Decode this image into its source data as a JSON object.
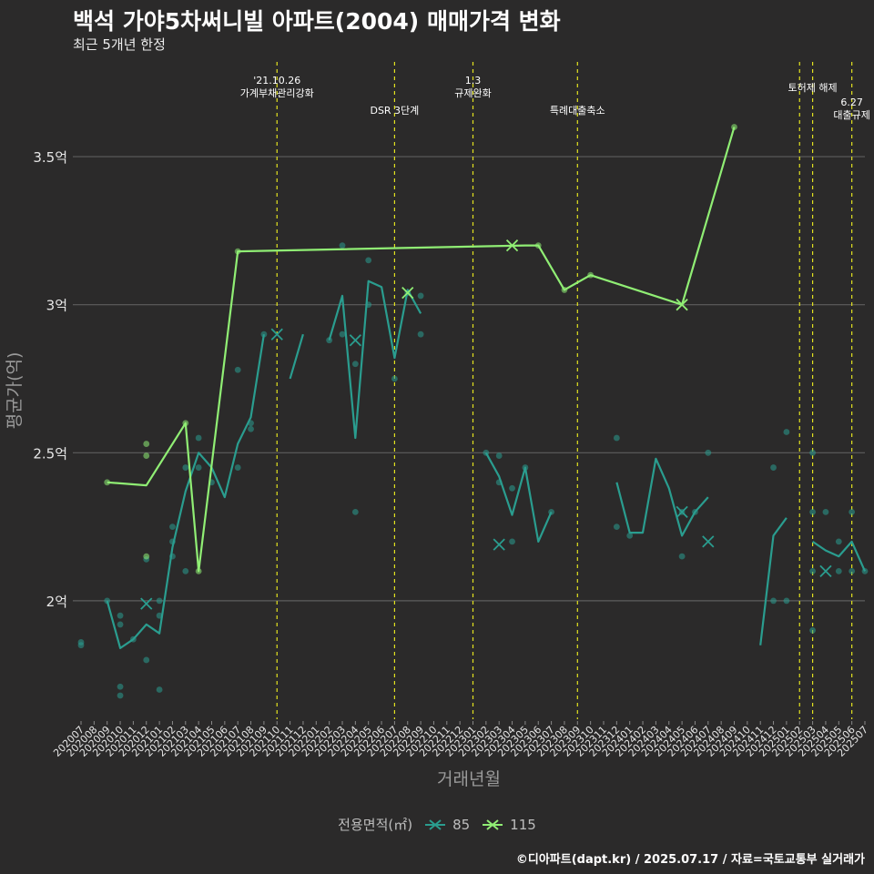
{
  "title": "백석 가야5차써니빌 아파트(2004) 매매가격 변화",
  "subtitle": "최근 5개년 한정",
  "caption": "©디아파트(dapt.kr) / 2025.07.17 / 자료=국토교통부 실거래가",
  "legend_title": "전용면적(㎡)",
  "chart_data": {
    "type": "line",
    "xlabel": "거래년월",
    "ylabel": "평균가(억)",
    "ylim": [
      1.6,
      3.82
    ],
    "yticks": [
      {
        "v": 2,
        "label": "2억"
      },
      {
        "v": 2.5,
        "label": "2.5억"
      },
      {
        "v": 3,
        "label": "3억"
      },
      {
        "v": 3.5,
        "label": "3.5억"
      }
    ],
    "categories": [
      "202007",
      "202008",
      "202009",
      "202010",
      "202011",
      "202012",
      "202101",
      "202102",
      "202103",
      "202104",
      "202105",
      "202106",
      "202107",
      "202108",
      "202109",
      "202110",
      "202111",
      "202112",
      "202201",
      "202202",
      "202203",
      "202204",
      "202205",
      "202206",
      "202207",
      "202208",
      "202209",
      "202210",
      "202211",
      "202212",
      "202301",
      "202302",
      "202303",
      "202304",
      "202305",
      "202306",
      "202307",
      "202308",
      "202309",
      "202310",
      "202311",
      "202312",
      "202401",
      "202402",
      "202403",
      "202404",
      "202405",
      "202406",
      "202407",
      "202408",
      "202409",
      "202410",
      "202411",
      "202412",
      "202501",
      "202502",
      "202503",
      "202504",
      "202505",
      "202506",
      "202507"
    ],
    "grid": true,
    "legend_position": "bottom",
    "series": [
      {
        "name": "85",
        "color": "#2a9d8f",
        "line": [
          [
            [
              2,
              2.0
            ],
            [
              3,
              1.84
            ],
            [
              4,
              1.87
            ],
            [
              5,
              1.92
            ],
            [
              6,
              1.89
            ],
            [
              7,
              2.18
            ],
            [
              8,
              2.37
            ],
            [
              9,
              2.5
            ],
            [
              10,
              2.45
            ],
            [
              11,
              2.35
            ],
            [
              12,
              2.53
            ],
            [
              13,
              2.62
            ],
            [
              14,
              2.9
            ]
          ],
          [
            [
              16,
              2.75
            ],
            [
              17,
              2.9
            ]
          ],
          [
            [
              19,
              2.88
            ],
            [
              20,
              3.03
            ],
            [
              21,
              2.55
            ],
            [
              22,
              3.08
            ],
            [
              23,
              3.06
            ],
            [
              24,
              2.82
            ],
            [
              25,
              3.05
            ],
            [
              26,
              2.97
            ]
          ],
          [
            [
              31,
              2.5
            ],
            [
              32,
              2.42
            ],
            [
              33,
              2.29
            ],
            [
              34,
              2.45
            ],
            [
              35,
              2.2
            ],
            [
              36,
              2.3
            ]
          ],
          [
            [
              41,
              2.4
            ],
            [
              42,
              2.23
            ],
            [
              43,
              2.23
            ],
            [
              44,
              2.48
            ],
            [
              45,
              2.38
            ],
            [
              46,
              2.22
            ],
            [
              47,
              2.3
            ],
            [
              48,
              2.35
            ]
          ],
          [
            [
              52,
              1.85
            ],
            [
              53,
              2.22
            ],
            [
              54,
              2.28
            ]
          ],
          [
            [
              56,
              2.2
            ],
            [
              57,
              2.17
            ],
            [
              58,
              2.15
            ],
            [
              59,
              2.2
            ],
            [
              60,
              2.1
            ]
          ]
        ],
        "points": [
          [
            0,
            1.86
          ],
          [
            0,
            1.85
          ],
          [
            2,
            2.0
          ],
          [
            3,
            1.95
          ],
          [
            3,
            1.92
          ],
          [
            3,
            1.71
          ],
          [
            3,
            1.68
          ],
          [
            4,
            1.87
          ],
          [
            5,
            2.14
          ],
          [
            5,
            1.8
          ],
          [
            6,
            2.0
          ],
          [
            6,
            1.95
          ],
          [
            6,
            1.7
          ],
          [
            7,
            2.2
          ],
          [
            7,
            2.15
          ],
          [
            7,
            2.25
          ],
          [
            8,
            2.45
          ],
          [
            8,
            2.1
          ],
          [
            9,
            2.55
          ],
          [
            9,
            2.45
          ],
          [
            10,
            2.4
          ],
          [
            12,
            2.78
          ],
          [
            12,
            2.45
          ],
          [
            13,
            2.6
          ],
          [
            13,
            2.58
          ],
          [
            14,
            2.9
          ],
          [
            19,
            2.88
          ],
          [
            20,
            3.2
          ],
          [
            20,
            2.9
          ],
          [
            21,
            2.3
          ],
          [
            21,
            2.8
          ],
          [
            22,
            3.15
          ],
          [
            22,
            3.0
          ],
          [
            24,
            2.75
          ],
          [
            25,
            3.04
          ],
          [
            26,
            3.03
          ],
          [
            26,
            2.9
          ],
          [
            31,
            2.5
          ],
          [
            32,
            2.49
          ],
          [
            32,
            2.4
          ],
          [
            33,
            2.38
          ],
          [
            33,
            2.2
          ],
          [
            34,
            2.45
          ],
          [
            36,
            2.3
          ],
          [
            41,
            2.55
          ],
          [
            41,
            2.25
          ],
          [
            42,
            2.22
          ],
          [
            46,
            2.15
          ],
          [
            46,
            2.3
          ],
          [
            47,
            2.3
          ],
          [
            48,
            2.5
          ],
          [
            53,
            2.45
          ],
          [
            53,
            2.0
          ],
          [
            54,
            2.57
          ],
          [
            54,
            2.0
          ],
          [
            56,
            2.5
          ],
          [
            56,
            2.3
          ],
          [
            56,
            2.1
          ],
          [
            56,
            1.9
          ],
          [
            57,
            2.3
          ],
          [
            58,
            2.2
          ],
          [
            58,
            2.1
          ],
          [
            59,
            2.3
          ],
          [
            59,
            2.1
          ],
          [
            60,
            2.1
          ]
        ],
        "single_marks": [
          [
            5,
            1.99
          ],
          [
            15,
            2.9
          ],
          [
            21,
            2.88
          ],
          [
            32,
            2.19
          ],
          [
            46,
            2.3
          ],
          [
            48,
            2.2
          ],
          [
            57,
            2.1
          ]
        ]
      },
      {
        "name": "115",
        "color": "#90ee74",
        "line": [
          [
            [
              2,
              2.4
            ],
            [
              5,
              2.39
            ],
            [
              8,
              2.6
            ],
            [
              9,
              2.1
            ],
            [
              12,
              3.18
            ],
            [
              34,
              3.2
            ],
            [
              35,
              3.2
            ],
            [
              37,
              3.05
            ],
            [
              39,
              3.1
            ],
            [
              46,
              3.0
            ],
            [
              50,
              3.6
            ]
          ]
        ],
        "points": [
          [
            2,
            2.4
          ],
          [
            5,
            2.53
          ],
          [
            5,
            2.49
          ],
          [
            5,
            2.15
          ],
          [
            8,
            2.6
          ],
          [
            9,
            2.1
          ],
          [
            12,
            3.18
          ],
          [
            35,
            3.2
          ],
          [
            37,
            3.05
          ],
          [
            39,
            3.1
          ],
          [
            50,
            3.6
          ]
        ],
        "single_marks": [
          [
            25,
            3.04
          ],
          [
            33,
            3.2
          ],
          [
            46,
            3.0
          ]
        ]
      }
    ],
    "events": [
      {
        "x": 15,
        "lines": [
          "'21.10.26",
          "가계부채관리강화"
        ],
        "tier": 0
      },
      {
        "x": 24,
        "lines": [
          "DSR 3단계"
        ],
        "tier": 2
      },
      {
        "x": 30,
        "lines": [
          "1.3",
          "규제완화"
        ],
        "tier": 0
      },
      {
        "x": 38,
        "lines": [
          "특례대출축소"
        ],
        "tier": 2
      },
      {
        "x": 55,
        "lines": [],
        "tier": 0
      },
      {
        "x": 56,
        "lines": [
          "토허제 해제"
        ],
        "tier": 1
      },
      {
        "x": 59,
        "lines": [
          "6.27",
          "대출규제"
        ],
        "tier": 1.7
      }
    ]
  }
}
